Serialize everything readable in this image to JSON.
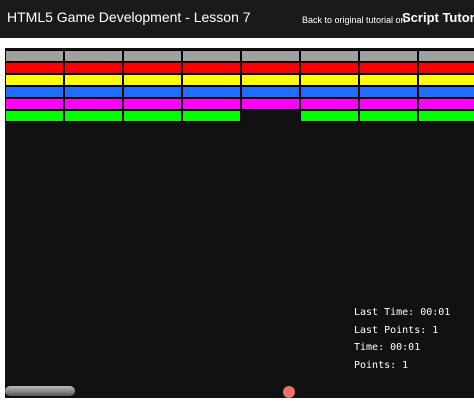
{
  "header": {
    "title": "HTML5 Game Development - Lesson 7",
    "back_link": "Back to original tutorial on",
    "site_name": "Script Tutorials"
  },
  "game": {
    "brick_rows": [
      {
        "color": "#a0a0a0",
        "bricks": [
          1,
          1,
          1,
          1,
          1,
          1,
          1,
          1
        ]
      },
      {
        "color": "#ff0000",
        "bricks": [
          1,
          1,
          1,
          1,
          1,
          1,
          1,
          1
        ]
      },
      {
        "color": "#ffff00",
        "bricks": [
          1,
          1,
          1,
          1,
          1,
          1,
          1,
          1
        ]
      },
      {
        "color": "#1e6fff",
        "bricks": [
          1,
          1,
          1,
          1,
          1,
          1,
          1,
          1
        ]
      },
      {
        "color": "#ff00ff",
        "bricks": [
          1,
          1,
          1,
          1,
          1,
          1,
          1,
          1
        ]
      },
      {
        "color": "#00ff00",
        "bricks": [
          1,
          1,
          1,
          1,
          0,
          1,
          1,
          1
        ]
      }
    ],
    "stats": {
      "last_time": "Last Time: 00:01",
      "last_points": "Last Points: 1",
      "time": "Time: 00:01",
      "points": "Points: 1"
    },
    "paddle_color": "#999999",
    "ball_color": "#f07070"
  }
}
